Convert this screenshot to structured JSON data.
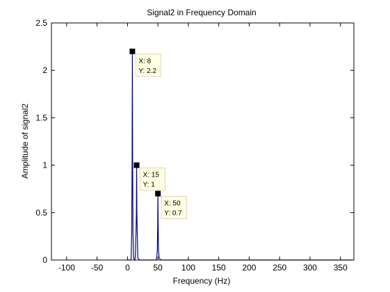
{
  "chart_data": {
    "type": "line",
    "title": "Signal2 in Frequency Domain",
    "xlabel": "Frequency (Hz)",
    "ylabel": "Amplitude of signal2",
    "xlim": [
      -125,
      372
    ],
    "ylim": [
      0,
      2.5
    ],
    "x_ticks": [
      -100,
      -50,
      0,
      50,
      100,
      150,
      200,
      250,
      300,
      350
    ],
    "y_ticks": [
      0,
      0.5,
      1,
      1.5,
      2,
      2.5
    ],
    "grid": false,
    "line_color": "#000080",
    "series": [
      {
        "x": [
          0,
          5,
          6,
          7,
          7.6,
          8,
          8.4,
          9,
          10,
          12,
          13,
          14,
          14.6,
          15,
          15.4,
          16,
          17,
          20,
          47,
          48,
          49,
          49.6,
          50,
          50.4,
          51,
          52,
          55,
          370
        ],
        "values": [
          0.0,
          0.0,
          0.02,
          0.3,
          1.1,
          2.2,
          1.1,
          0.3,
          0.02,
          0.0,
          0.05,
          0.3,
          0.5,
          1.0,
          0.5,
          0.3,
          0.02,
          0.0,
          0.0,
          0.02,
          0.1,
          0.35,
          0.7,
          0.35,
          0.1,
          0.02,
          0.0,
          0.0
        ]
      }
    ],
    "datatips": [
      {
        "x": 8,
        "y": 2.2,
        "x_text": "X: 8",
        "y_text": "Y: 2.2"
      },
      {
        "x": 15,
        "y": 1,
        "x_text": "X: 15",
        "y_text": "Y: 1"
      },
      {
        "x": 50,
        "y": 0.7,
        "x_text": "X: 50",
        "y_text": "Y: 0.7"
      }
    ]
  }
}
